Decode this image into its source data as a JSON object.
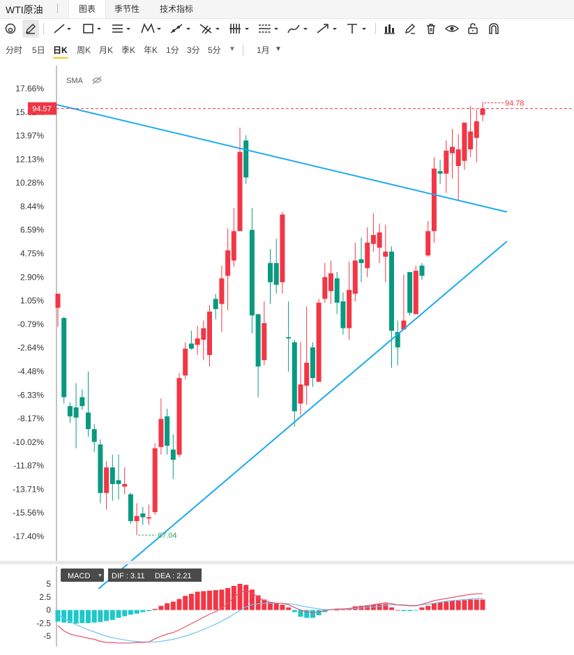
{
  "header": {
    "title": "WTI原油",
    "tabs": [
      {
        "label": "图表",
        "active": true
      },
      {
        "label": "季节性",
        "active": false
      },
      {
        "label": "技术指标",
        "active": false
      }
    ]
  },
  "toolbar": {
    "icons": [
      "magnet-circle-icon",
      "pencil-icon",
      "line-icon",
      "rectangle-icon",
      "parallel-lines-icon",
      "pattern-icon",
      "ray-icon",
      "crossed-lines-icon",
      "fork-icon",
      "fib-icon",
      "brush-icon",
      "arrow-icon",
      "text-icon",
      "chart-bars-icon",
      "edit-icon",
      "trash-icon",
      "eye-icon",
      "unlock-icon",
      "magnet-icon"
    ]
  },
  "periods": {
    "items": [
      "分时",
      "5日",
      "日K",
      "周K",
      "月K",
      "季K",
      "年K",
      "1分",
      "3分",
      "5分"
    ],
    "active": "日K",
    "range_label": "1月"
  },
  "indicator": {
    "label": "SMA"
  },
  "colors": {
    "up": "#f23645",
    "down": "#089981",
    "trend": "#1aaaf0",
    "dif": "#e6526b",
    "dea": "#6fc3ef",
    "hist_up": "#f23645",
    "hist_down": "#1ec8c8"
  },
  "chart_data": {
    "type": "candlestick",
    "y_axis_ticks": [
      "17.66%",
      "15.82%",
      "13.97%",
      "12.13%",
      "10.28%",
      "8.44%",
      "6.59%",
      "4.75%",
      "2.90%",
      "1.05%",
      "-0.79%",
      "-2.64%",
      "-4.48%",
      "-6.33%",
      "-8.17%",
      "-10.02%",
      "-11.87%",
      "-13.71%",
      "-15.56%",
      "-17.40%"
    ],
    "ylim_pct": [
      -17.4,
      17.66
    ],
    "current_price": "94.57",
    "max_label": "94.78",
    "min_label": "67.04",
    "candles": [
      [
        0.5,
        1.6,
        1.1,
        -1.0
      ],
      [
        -0.3,
        -6.5,
        -0.2,
        -7.0
      ],
      [
        -7.2,
        -8.0,
        -6.9,
        -8.5
      ],
      [
        -7.3,
        -8.1,
        -5.4,
        -10.5
      ],
      [
        -6.5,
        -7.2,
        -5.9,
        -7.5
      ],
      [
        -7.7,
        -9.0,
        -4.5,
        -9.6
      ],
      [
        -9.0,
        -10.0,
        -8.6,
        -10.8
      ],
      [
        -10.2,
        -14.0,
        -9.8,
        -14.8
      ],
      [
        -14.0,
        -12.0,
        -11.5,
        -15.3
      ],
      [
        -12.0,
        -13.3,
        -11.0,
        -14.6
      ],
      [
        -13.0,
        -13.3,
        -11.0,
        -14.5
      ],
      [
        -13.5,
        -13.3,
        -12.0,
        -14.1
      ],
      [
        -14.1,
        -16.2,
        -14.0,
        -16.4
      ],
      [
        -16.2,
        -15.8,
        -14.8,
        -17.3
      ],
      [
        -15.6,
        -15.9,
        -15.1,
        -16.5
      ],
      [
        -16.0,
        -15.9,
        -14.9,
        -16.5
      ],
      [
        -15.5,
        -10.5,
        -10.1,
        -15.7
      ],
      [
        -10.4,
        -8.2,
        -6.6,
        -11.0
      ],
      [
        -8.0,
        -10.3,
        -7.4,
        -11.0
      ],
      [
        -10.6,
        -11.4,
        -9.4,
        -12.9
      ],
      [
        -11.0,
        -5.0,
        -4.6,
        -11.2
      ],
      [
        -4.8,
        -2.7,
        -2.2,
        -5.1
      ],
      [
        -2.3,
        -2.7,
        -1.3,
        -2.8
      ],
      [
        -2.4,
        -1.9,
        -0.9,
        -3.2
      ],
      [
        -2.0,
        -1.1,
        -0.5,
        -3.6
      ],
      [
        -3.2,
        0.2,
        0.7,
        -4.1
      ],
      [
        1.2,
        0.4,
        1.6,
        -0.4
      ],
      [
        0.8,
        2.8,
        3.8,
        -1.4
      ],
      [
        3.0,
        5.0,
        6.7,
        0.3
      ],
      [
        4.2,
        6.5,
        8.3,
        3.7
      ],
      [
        6.5,
        12.7,
        14.6,
        12.1
      ],
      [
        13.6,
        10.7,
        14.0,
        10.2
      ],
      [
        6.6,
        -0.1,
        8.3,
        -1.5
      ],
      [
        0.0,
        -4.1,
        -1.4,
        -6.5
      ],
      [
        -3.6,
        -0.7,
        1.0,
        -4.0
      ],
      [
        4.0,
        2.5,
        5.1,
        0.8
      ],
      [
        4.0,
        2.3,
        5.9,
        1.6
      ],
      [
        2.5,
        7.8,
        8.0,
        1.6
      ],
      [
        -1.8,
        -1.9,
        1.0,
        -4.5
      ],
      [
        -2.2,
        -7.6,
        -2.0,
        -8.8
      ],
      [
        -7.0,
        -5.5,
        -2.2,
        -7.9
      ],
      [
        -5.6,
        -3.8,
        0.6,
        -7.1
      ],
      [
        -2.6,
        -5.0,
        -2.2,
        -5.7
      ],
      [
        -5.3,
        0.9,
        1.2,
        -4.3
      ],
      [
        1.2,
        2.9,
        4.0,
        0.9
      ],
      [
        1.8,
        3.2,
        4.2,
        0.8
      ],
      [
        2.8,
        0.9,
        3.3,
        0.0
      ],
      [
        1.0,
        -1.1,
        1.7,
        -1.6
      ],
      [
        -1.1,
        1.9,
        4.1,
        -2.0
      ],
      [
        1.6,
        4.2,
        5.6,
        1.0
      ],
      [
        4.3,
        4.0,
        6.0,
        2.5
      ],
      [
        3.6,
        5.6,
        6.8,
        2.9
      ],
      [
        5.5,
        6.2,
        7.9,
        4.9
      ],
      [
        5.2,
        6.4,
        7.1,
        4.0
      ],
      [
        4.5,
        4.9,
        7.0,
        2.5
      ],
      [
        4.9,
        -1.3,
        5.3,
        -4.2
      ],
      [
        -1.4,
        -2.6,
        -0.5,
        -4.0
      ],
      [
        -1.2,
        -0.5,
        3.1,
        -0.9
      ],
      [
        3.3,
        0.1,
        3.3,
        -0.1
      ],
      [
        0.0,
        3.4,
        3.8,
        0.1
      ],
      [
        3.8,
        3.0,
        4.0,
        2.7
      ],
      [
        4.6,
        6.5,
        7.3,
        4.5
      ],
      [
        6.5,
        11.4,
        12.3,
        5.6
      ],
      [
        11.2,
        11.0,
        12.1,
        10.2
      ],
      [
        11.0,
        12.8,
        13.6,
        9.5
      ],
      [
        12.6,
        13.1,
        14.5,
        10.6
      ],
      [
        11.6,
        12.9,
        14.1,
        8.9
      ],
      [
        12.0,
        15.0,
        14.9,
        11.3
      ],
      [
        12.9,
        14.3,
        16.3,
        12.3
      ],
      [
        13.8,
        15.1,
        16.0,
        11.9
      ],
      [
        15.6,
        16.1,
        16.6,
        15.1
      ]
    ],
    "trendlines": [
      {
        "name": "resistance",
        "from": [
          -0.2,
          16.4
        ],
        "to": [
          74.0,
          8.0
        ]
      },
      {
        "name": "support",
        "from": [
          6.7,
          -21.5
        ],
        "to": [
          74.0,
          5.7
        ]
      }
    ],
    "macd": {
      "label": "MACD",
      "dif": "3.11",
      "dea": "2.21",
      "y_ticks": [
        "5",
        "2.5",
        "0",
        "-2.5",
        "-5"
      ],
      "ylim": [
        -6.2,
        6.2
      ],
      "hist": [
        -2.2,
        -2.4,
        -2.5,
        -2.6,
        -2.5,
        -2.5,
        -2.4,
        -2.3,
        -2.1,
        -1.9,
        -1.5,
        -1.2,
        -0.9,
        -0.7,
        -0.4,
        -0.2,
        0.2,
        0.8,
        1.3,
        1.6,
        2.1,
        2.7,
        3.1,
        3.5,
        3.6,
        3.7,
        3.8,
        3.9,
        4.2,
        4.6,
        5.0,
        4.8,
        3.9,
        2.8,
        2.0,
        1.5,
        1.2,
        1.0,
        0.5,
        -0.4,
        -1.3,
        -1.5,
        -1.5,
        -1.0,
        -0.4,
        0.1,
        0.0,
        0.1,
        0.3,
        0.7,
        0.8,
        0.9,
        1.0,
        1.1,
        1.2,
        0.5,
        0.0,
        -0.2,
        -0.2,
        -0.1,
        0.5,
        0.8,
        1.3,
        1.5,
        1.6,
        1.8,
        1.8,
        1.9,
        2.0,
        2.0,
        2.0
      ],
      "dif_line": [
        -3.0,
        -4.0,
        -4.6,
        -4.9,
        -5.1,
        -5.4,
        -5.6,
        -6.0,
        -6.2,
        -6.2,
        -6.3,
        -6.3,
        -6.3,
        -6.2,
        -6.2,
        -6.1,
        -5.5,
        -5.0,
        -4.6,
        -4.3,
        -3.8,
        -3.2,
        -2.6,
        -2.0,
        -1.4,
        -0.8,
        -0.3,
        0.4,
        1.2,
        2.4,
        3.4,
        3.7,
        3.3,
        2.4,
        1.8,
        1.5,
        1.3,
        1.3,
        1.0,
        0.5,
        0.0,
        -0.3,
        -0.5,
        -0.4,
        -0.1,
        0.1,
        0.2,
        0.2,
        0.3,
        0.5,
        0.7,
        0.8,
        1.0,
        1.2,
        1.4,
        1.2,
        1.0,
        0.9,
        0.8,
        0.8,
        1.1,
        1.4,
        1.8,
        2.0,
        2.2,
        2.4,
        2.6,
        2.8,
        3.0,
        3.1,
        3.11
      ],
      "dea_line": [
        -0.8,
        -1.6,
        -2.2,
        -2.8,
        -3.3,
        -3.8,
        -4.2,
        -4.6,
        -5.0,
        -5.3,
        -5.5,
        -5.7,
        -5.9,
        -6.0,
        -6.1,
        -6.1,
        -6.1,
        -6.0,
        -5.8,
        -5.6,
        -5.3,
        -5.0,
        -4.6,
        -4.2,
        -3.7,
        -3.2,
        -2.7,
        -2.1,
        -1.5,
        -0.8,
        -0.1,
        0.6,
        1.0,
        1.2,
        1.3,
        1.3,
        1.3,
        1.3,
        1.2,
        1.1,
        0.8,
        0.6,
        0.4,
        0.2,
        0.1,
        0.1,
        0.1,
        0.2,
        0.2,
        0.3,
        0.4,
        0.5,
        0.6,
        0.7,
        0.9,
        1.0,
        1.0,
        1.0,
        0.9,
        0.9,
        1.0,
        1.1,
        1.3,
        1.5,
        1.7,
        1.8,
        1.9,
        2.0,
        2.1,
        2.2,
        2.21
      ]
    }
  }
}
